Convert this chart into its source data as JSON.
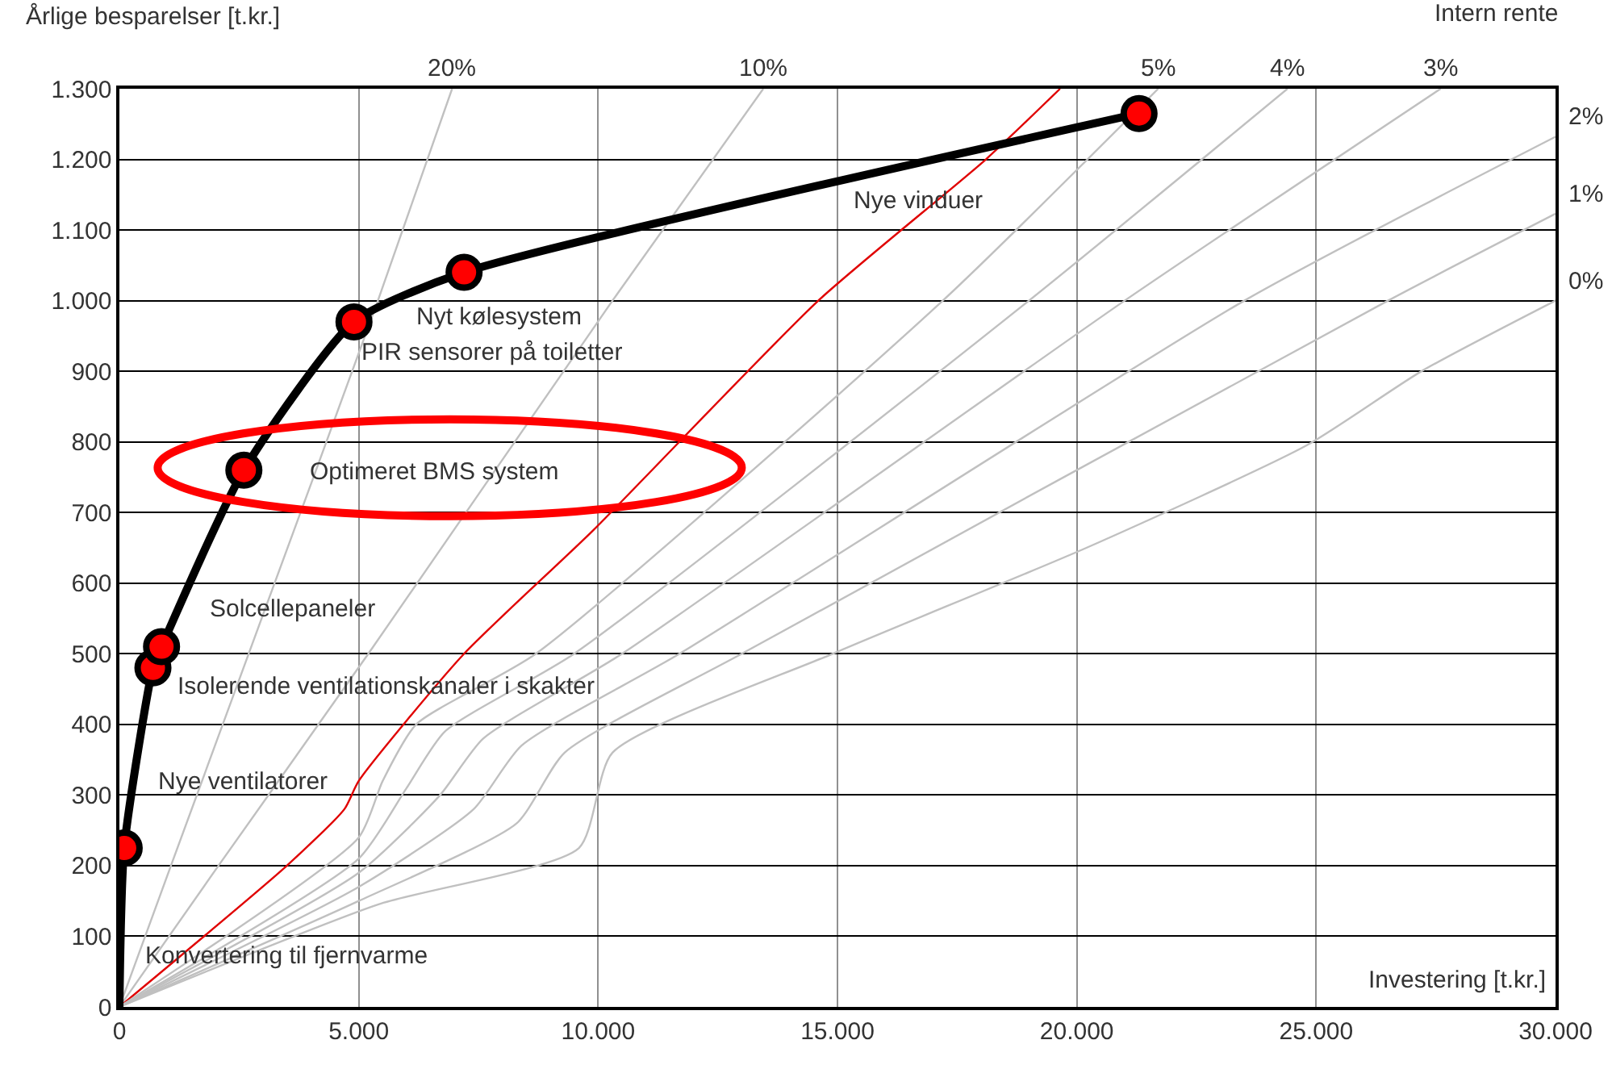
{
  "chart_data": {
    "type": "line",
    "xlabel": "Investering [t.kr.]",
    "ylabel": "Årlige besparelser [t.kr.]",
    "xlim": [
      0,
      30000
    ],
    "ylim": [
      0,
      1300
    ],
    "xticks": [
      {
        "value": 0,
        "label": "0"
      },
      {
        "value": 5000,
        "label": "5.000"
      },
      {
        "value": 10000,
        "label": "10.000"
      },
      {
        "value": 15000,
        "label": "15.000"
      },
      {
        "value": 20000,
        "label": "20.000"
      },
      {
        "value": 25000,
        "label": "25.000"
      },
      {
        "value": 30000,
        "label": "30.000"
      }
    ],
    "yticks": [
      0,
      100,
      200,
      300,
      400,
      500,
      600,
      700,
      800,
      900,
      {
        "value": 1000,
        "label": "1.000"
      },
      {
        "value": 1100,
        "label": "1.100"
      },
      {
        "value": 1200,
        "label": "1.200"
      },
      {
        "value": 1300,
        "label": "1.300"
      }
    ],
    "grid": true,
    "line_style": "solid",
    "series": [
      {
        "name": "20%",
        "color": "#c0c0c0",
        "x": [
          0,
          1077,
          2700,
          5400,
          6950
        ],
        "values": [
          0,
          200,
          500,
          1000,
          1300
        ]
      },
      {
        "name": "10%",
        "color": "#c0c0c0",
        "x": [
          0,
          2070,
          5200,
          10300,
          13450
        ],
        "values": [
          0,
          200,
          500,
          1000,
          1300
        ]
      },
      {
        "color": "#e00000",
        "x": [
          0,
          3500,
          4700,
          5000,
          7200,
          9900,
          14600,
          18100,
          19650
        ],
        "values": [
          0,
          200,
          280,
          320,
          500,
          675,
          1000,
          1200,
          1300
        ]
      },
      {
        "name": "5%",
        "color": "#c0c0c0",
        "x": [
          0,
          5000,
          5500,
          6200,
          8700,
          17200,
          21700
        ],
        "values": [
          0,
          240,
          320,
          400,
          500,
          1000,
          1300
        ]
      },
      {
        "name": "4%",
        "color": "#c0c0c0",
        "x": [
          0,
          5000,
          6000,
          6800,
          9500,
          19000,
          24400
        ],
        "values": [
          0,
          210,
          310,
          390,
          500,
          1000,
          1300
        ]
      },
      {
        "name": "3%",
        "color": "#c0c0c0",
        "x": [
          0,
          5000,
          6700,
          7600,
          10500,
          21000,
          27600
        ],
        "values": [
          0,
          190,
          300,
          380,
          500,
          1000,
          1300
        ]
      },
      {
        "name": "2%",
        "color": "#c0c0c0",
        "x": [
          0,
          5000,
          7400,
          8400,
          11700,
          23500,
          30000
        ],
        "values": [
          0,
          170,
          280,
          370,
          500,
          1000,
          1232
        ]
      },
      {
        "name": "1%",
        "color": "#c0c0c0",
        "x": [
          0,
          5000,
          8300,
          9300,
          13000,
          26500,
          30000
        ],
        "values": [
          0,
          150,
          260,
          360,
          500,
          1000,
          1123
        ]
      },
      {
        "name": "0%",
        "color": "#c0c0c0",
        "x": [
          0,
          5400,
          9600,
          10300,
          14900,
          20200,
          24800,
          27200,
          30000
        ],
        "values": [
          0,
          145,
          225,
          360,
          500,
          650,
          795,
          900,
          1000
        ]
      },
      {
        "color": "#000000",
        "x": [
          0,
          100,
          700,
          880,
          2600,
          4900,
          7200,
          21300
        ],
        "values": [
          0,
          225,
          480,
          510,
          760,
          970,
          1040,
          1265
        ]
      },
      {
        "type": "scatter",
        "marker": "circle",
        "color": "#ff0000",
        "x": [
          100,
          700,
          880,
          2600,
          4900,
          7200,
          21300
        ],
        "values": [
          225,
          480,
          510,
          760,
          970,
          1040,
          1265
        ]
      }
    ],
    "annotations": [
      "Intern rente",
      "Konvertering til fjernvarme",
      "Nye ventilatorer",
      "Isolerende ventilationskanaler i skakter",
      "Solcellepaneler",
      "Optimeret BMS system",
      "PIR sensorer på toiletter",
      "Nyt kølesystem",
      "Nye vinduer"
    ]
  }
}
